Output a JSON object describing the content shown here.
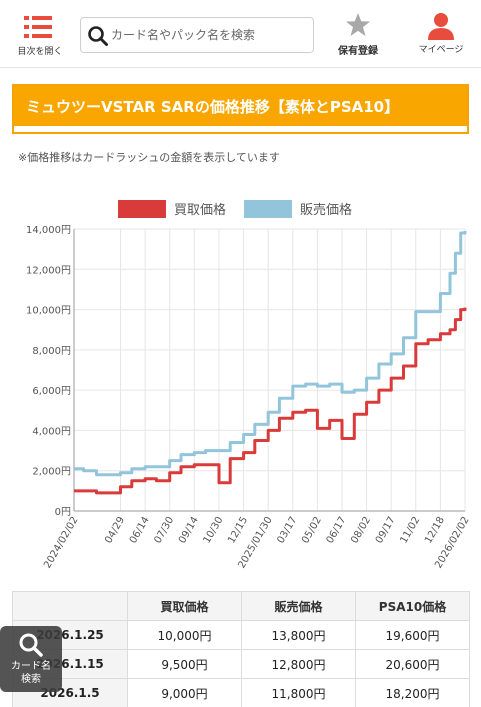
{
  "header": {
    "menu_label": "目次を開く",
    "search_placeholder": "カード名やパック名を検索",
    "collection_label": "保有登録",
    "mypage_label": "マイページ"
  },
  "banner": {
    "title": "ミュウツーVSTAR SARの価格推移【素体とPSA10】"
  },
  "note": "※価格推移はカードラッシュの金額を表示しています",
  "chart_data": {
    "type": "line",
    "title": "",
    "legend_position": "top",
    "x": [
      "2024/02/02",
      "2024/02/20",
      "2024/03/15",
      "2024/04/10",
      "2024/04/29",
      "2024/05/20",
      "2024/06/14",
      "2024/07/05",
      "2024/07/30",
      "2024/08/20",
      "2024/09/14",
      "2024/10/05",
      "2024/10/30",
      "2024/11/20",
      "2024/12/15",
      "2025/01/05",
      "2025/01/30",
      "2025/02/20",
      "2025/03/17",
      "2025/04/10",
      "2025/05/02",
      "2025/05/25",
      "2025/06/17",
      "2025/07/10",
      "2025/08/02",
      "2025/08/25",
      "2025/09/17",
      "2025/10/10",
      "2025/11/02",
      "2025/11/25",
      "2025/12/18",
      "2026/01/05",
      "2026/01/15",
      "2026/01/25",
      "2026/02/02"
    ],
    "series": [
      {
        "name": "販売価格",
        "color": "#92c5db",
        "values": [
          2100,
          2000,
          1800,
          1800,
          1900,
          2100,
          2200,
          2200,
          2500,
          2800,
          2900,
          3000,
          3000,
          3400,
          3800,
          4300,
          4900,
          5600,
          6200,
          6300,
          6200,
          6300,
          5900,
          6000,
          6600,
          7300,
          7800,
          8600,
          9900,
          9900,
          10800,
          11800,
          12800,
          13800,
          13900
        ]
      },
      {
        "name": "買取価格",
        "color": "#d93a3a",
        "values": [
          1000,
          1000,
          900,
          900,
          1200,
          1500,
          1600,
          1500,
          1900,
          2200,
          2300,
          2300,
          1400,
          2600,
          2900,
          3500,
          4000,
          4600,
          4900,
          5000,
          4100,
          4500,
          3600,
          4800,
          5400,
          6000,
          6600,
          7200,
          8300,
          8500,
          8800,
          9000,
          9500,
          10000,
          10100
        ]
      }
    ],
    "yticks": [
      "0円",
      "2,000円",
      "4,000円",
      "6,000円",
      "8,000円",
      "10,000円",
      "12,000円",
      "14,000円"
    ],
    "xticks": [
      "2024/02/02",
      "04/29",
      "06/14",
      "07/30",
      "09/14",
      "10/30",
      "12/15",
      "2025/01/30",
      "03/17",
      "05/02",
      "06/17",
      "08/02",
      "09/17",
      "11/02",
      "12/18",
      "2026/02/02"
    ],
    "ylim": [
      0,
      14000
    ],
    "grid": true
  },
  "table": {
    "headers": [
      "",
      "買取価格",
      "販売価格",
      "PSA10価格"
    ],
    "rows": [
      [
        "2026.1.25",
        "10,000円",
        "13,800円",
        "19,600円"
      ],
      [
        "2026.1.15",
        "9,500円",
        "12,800円",
        "20,600円"
      ],
      [
        "2026.1.5",
        "9,000円",
        "11,800円",
        "18,200円"
      ]
    ]
  },
  "float_button": {
    "label_line1": "カード名",
    "label_line2": "検索"
  },
  "colors": {
    "accent": "#f9a600",
    "menu_red": "#e74c3c",
    "buy_red": "#d93a3a",
    "sell_blue": "#92c5db"
  }
}
